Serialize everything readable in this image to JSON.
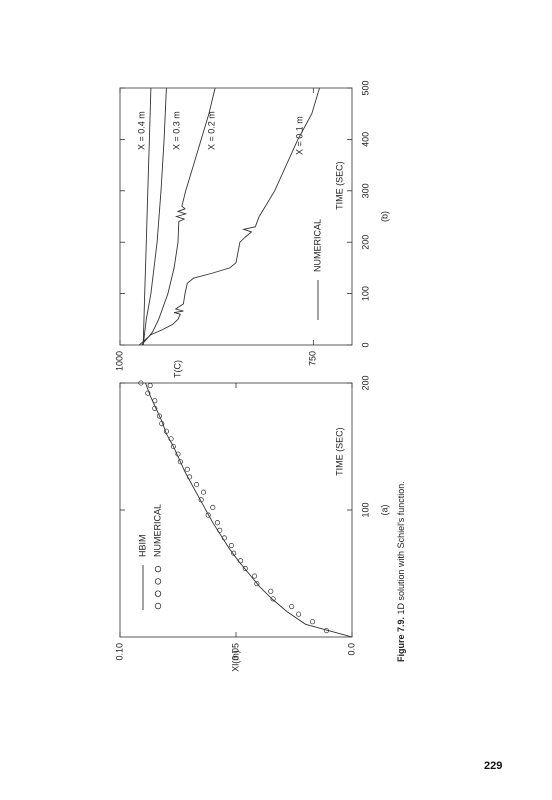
{
  "page_number": "229",
  "figure_label": "Figure 7.9.",
  "caption": "1D solution with Schiel's function.",
  "chart_data": [
    {
      "type": "line",
      "panel": "(a)",
      "xlabel": "TIME (SEC)",
      "ylabel": "Xl(m)",
      "xlim": [
        0,
        200
      ],
      "xticks": [
        100,
        200
      ],
      "ylim": [
        0,
        0.1
      ],
      "yticks": [
        {
          "value": 0,
          "label": "0.0"
        },
        0.05,
        {
          "value": 0.1,
          "label": "0.10"
        }
      ],
      "series": [
        {
          "name": "HBIM",
          "color": "#333",
          "style": "line",
          "x": [
            0,
            10,
            20,
            30,
            40,
            50,
            60,
            70,
            80,
            90,
            100,
            110,
            120,
            130,
            140,
            150,
            160,
            170,
            180,
            190,
            200
          ],
          "values": [
            0,
            0.02,
            0.028,
            0.0345,
            0.04,
            0.0445,
            0.049,
            0.053,
            0.0565,
            0.06,
            0.063,
            0.066,
            0.069,
            0.072,
            0.0745,
            0.077,
            0.08,
            0.082,
            0.0845,
            0.087,
            0.089
          ]
        },
        {
          "name": "NUMERICAL",
          "color": "#333",
          "style": "circle",
          "x": [
            5,
            12,
            18,
            24,
            30,
            36,
            42,
            48,
            54,
            60,
            66,
            72,
            78,
            84,
            90,
            96,
            102,
            108,
            114,
            120,
            126,
            132,
            138,
            144,
            150,
            156,
            162,
            168,
            174,
            180,
            186,
            192,
            198,
            200
          ],
          "values": [
            0.011,
            0.017,
            0.023,
            0.026,
            0.034,
            0.035,
            0.041,
            0.042,
            0.046,
            0.048,
            0.051,
            0.052,
            0.055,
            0.057,
            0.058,
            0.062,
            0.06,
            0.065,
            0.064,
            0.067,
            0.07,
            0.071,
            0.074,
            0.075,
            0.077,
            0.078,
            0.08,
            0.082,
            0.083,
            0.085,
            0.085,
            0.088,
            0.087,
            0.091
          ]
        }
      ]
    },
    {
      "type": "line",
      "panel": "(b)",
      "xlabel": "TIME (SEC)",
      "ylabel": "T(C)",
      "legend": "NUMERICAL",
      "xlim": [
        0,
        500
      ],
      "xticks": [
        0,
        100,
        200,
        300,
        400,
        500
      ],
      "ylim": [
        700,
        1000
      ],
      "yticks": [
        750,
        1000
      ],
      "series": [
        {
          "name": "X = 0.4 m",
          "color": "#333",
          "style": "line",
          "x": [
            0,
            100,
            200,
            300,
            400,
            500
          ],
          "values": [
            970,
            968,
            966,
            964,
            962,
            960
          ]
        },
        {
          "name": "X = 0.3 m",
          "color": "#333",
          "style": "line",
          "x": [
            0,
            50,
            100,
            200,
            300,
            400,
            500
          ],
          "values": [
            970,
            966,
            960,
            952,
            947,
            943,
            940
          ]
        },
        {
          "name": "X = 0.2 m",
          "color": "#333",
          "style": "line",
          "x": [
            0,
            25,
            50,
            100,
            150,
            200,
            240,
            245,
            250,
            255,
            260,
            265,
            270,
            300,
            350,
            400,
            450,
            500
          ],
          "values": [
            972,
            958,
            950,
            938,
            930,
            925,
            924,
            917,
            927,
            915,
            925,
            916,
            920,
            915,
            905,
            895,
            885,
            877
          ]
        },
        {
          "name": "X = 0.1 m",
          "color": "#333",
          "style": "line",
          "x": [
            0,
            20,
            30,
            40,
            50,
            60,
            63,
            66,
            70,
            80,
            100,
            120,
            130,
            140,
            150,
            160,
            200,
            210,
            220,
            225,
            230,
            250,
            300,
            350,
            400,
            450,
            500
          ],
          "values": [
            975,
            960,
            945,
            932,
            925,
            922,
            930,
            918,
            928,
            918,
            916,
            913,
            905,
            880,
            858,
            850,
            845,
            838,
            830,
            840,
            825,
            820,
            800,
            785,
            770,
            752,
            742
          ]
        }
      ]
    }
  ]
}
